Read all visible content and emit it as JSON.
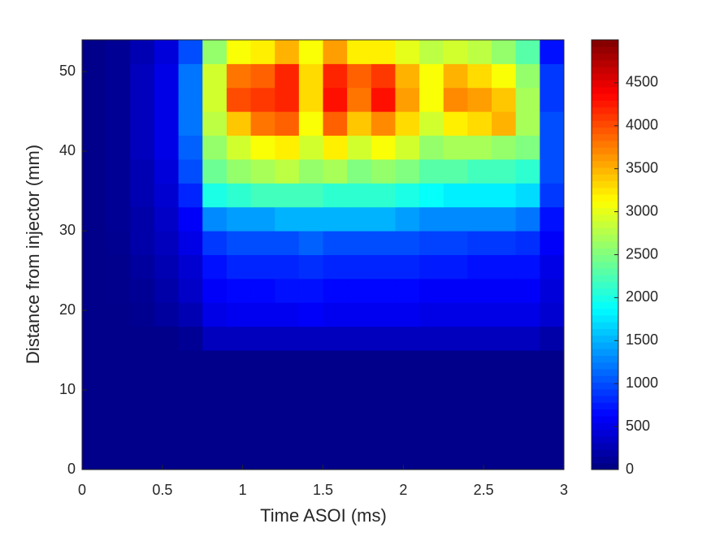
{
  "chart_data": {
    "type": "heatmap",
    "xlabel": "Time ASOI (ms)",
    "ylabel": "Distance from injector (mm)",
    "x": [
      0,
      0.15,
      0.3,
      0.45,
      0.6,
      0.75,
      0.9,
      1.05,
      1.2,
      1.35,
      1.5,
      1.65,
      1.8,
      1.95,
      2.1,
      2.25,
      2.4,
      2.55,
      2.7,
      2.85,
      3
    ],
    "y": [
      0,
      3,
      6,
      9,
      12,
      15,
      18,
      21,
      24,
      27,
      30,
      33,
      36,
      39,
      42,
      45,
      48,
      51,
      54
    ],
    "z": [
      [
        50,
        50,
        50,
        50,
        50,
        50,
        50,
        50,
        50,
        50,
        50,
        50,
        50,
        50,
        50,
        50,
        50,
        50,
        50,
        50
      ],
      [
        50,
        50,
        50,
        50,
        50,
        50,
        50,
        50,
        50,
        50,
        50,
        50,
        50,
        50,
        50,
        50,
        50,
        50,
        50,
        50
      ],
      [
        50,
        50,
        50,
        50,
        50,
        50,
        50,
        50,
        50,
        50,
        50,
        50,
        50,
        50,
        50,
        50,
        50,
        50,
        50,
        50
      ],
      [
        50,
        50,
        50,
        50,
        50,
        50,
        50,
        50,
        50,
        50,
        50,
        50,
        50,
        50,
        50,
        50,
        50,
        50,
        50,
        50
      ],
      [
        50,
        50,
        50,
        50,
        50,
        50,
        50,
        50,
        50,
        50,
        50,
        50,
        50,
        50,
        50,
        50,
        50,
        50,
        50,
        50
      ],
      [
        50,
        50,
        50,
        50,
        100,
        300,
        300,
        300,
        300,
        300,
        300,
        300,
        300,
        300,
        300,
        300,
        300,
        300,
        300,
        200
      ],
      [
        50,
        50,
        80,
        150,
        250,
        500,
        550,
        550,
        550,
        600,
        550,
        550,
        550,
        550,
        500,
        500,
        500,
        500,
        500,
        400
      ],
      [
        50,
        60,
        100,
        200,
        350,
        600,
        650,
        650,
        700,
        700,
        650,
        650,
        650,
        650,
        600,
        600,
        600,
        600,
        600,
        450
      ],
      [
        50,
        60,
        150,
        250,
        400,
        700,
        800,
        800,
        800,
        850,
        800,
        800,
        800,
        800,
        750,
        750,
        700,
        700,
        700,
        500
      ],
      [
        50,
        80,
        200,
        300,
        500,
        900,
        1000,
        1000,
        1000,
        1100,
        1000,
        1000,
        1000,
        1000,
        950,
        950,
        900,
        900,
        850,
        600
      ],
      [
        50,
        100,
        200,
        350,
        600,
        1300,
        1400,
        1400,
        1500,
        1500,
        1500,
        1500,
        1500,
        1400,
        1300,
        1300,
        1300,
        1300,
        1200,
        700
      ],
      [
        50,
        100,
        250,
        400,
        800,
        2000,
        2100,
        2200,
        2200,
        2200,
        2100,
        2100,
        2100,
        2000,
        1900,
        1800,
        1800,
        1800,
        1700,
        900
      ],
      [
        50,
        100,
        250,
        450,
        1000,
        2400,
        2600,
        2700,
        2800,
        2600,
        2700,
        2500,
        2600,
        2500,
        2300,
        2300,
        2200,
        2200,
        2100,
        1000
      ],
      [
        50,
        100,
        300,
        500,
        1100,
        2600,
        2900,
        3100,
        3200,
        2900,
        3200,
        2900,
        3100,
        2900,
        2600,
        2700,
        2700,
        2600,
        2500,
        1000
      ],
      [
        50,
        100,
        300,
        500,
        1200,
        2800,
        3400,
        3800,
        3900,
        3100,
        3900,
        3400,
        3700,
        3300,
        2900,
        3200,
        3300,
        3500,
        2700,
        1000
      ],
      [
        50,
        100,
        300,
        500,
        1200,
        2900,
        4000,
        4100,
        4200,
        3300,
        4300,
        3800,
        4300,
        3600,
        3100,
        3700,
        3600,
        3400,
        2700,
        900
      ],
      [
        50,
        100,
        300,
        500,
        1200,
        2900,
        3800,
        3900,
        4200,
        3300,
        4200,
        3900,
        4100,
        3500,
        3100,
        3500,
        3300,
        3100,
        2600,
        900
      ],
      [
        50,
        100,
        250,
        450,
        1000,
        2600,
        3100,
        3200,
        3500,
        3100,
        3600,
        3200,
        3200,
        3000,
        2800,
        2900,
        2800,
        2600,
        2300,
        700
      ]
    ],
    "colormap": "jet",
    "xlim": [
      0,
      3
    ],
    "xticks": [
      0,
      0.5,
      1,
      1.5,
      2,
      2.5,
      3
    ],
    "ylim": [
      0,
      54
    ],
    "yticks": [
      0,
      10,
      20,
      30,
      40,
      50
    ],
    "clim": [
      0,
      5000
    ],
    "cticks": [
      0,
      500,
      1000,
      1500,
      2000,
      2500,
      3000,
      3500,
      4000,
      4500
    ]
  }
}
